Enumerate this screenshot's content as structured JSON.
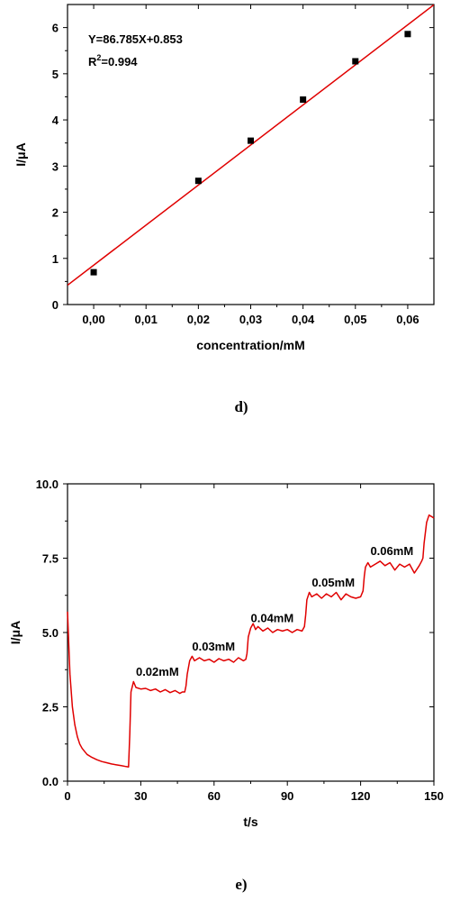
{
  "chart_data": [
    {
      "type": "scatter",
      "panel_label": "d)",
      "xlabel": "concentration/mM",
      "ylabel": "I/μA",
      "xlim": [
        -0.005,
        0.065
      ],
      "ylim": [
        0,
        6.5
      ],
      "x_ticks": [
        "0,00",
        "0,01",
        "0,02",
        "0,03",
        "0,04",
        "0,05",
        "0,06"
      ],
      "y_ticks": [
        "0",
        "1",
        "2",
        "3",
        "4",
        "5",
        "6"
      ],
      "equation": "Y=86.785X+0.853",
      "r_squared_prefix": "R",
      "r_squared_sup": "2",
      "r_squared_value": "=0.994",
      "fit": {
        "slope": 86.785,
        "intercept": 0.853
      },
      "series": [
        {
          "x": [
            0.0,
            0.02,
            0.03,
            0.04,
            0.05,
            0.06
          ],
          "y": [
            0.7,
            2.68,
            3.55,
            4.44,
            5.27,
            5.86
          ]
        }
      ],
      "colors": {
        "points": "#000000",
        "fit": "#e00000"
      }
    },
    {
      "type": "line",
      "panel_label": "e)",
      "xlabel": "t/s",
      "ylabel": "I/μA",
      "xlim": [
        0,
        150
      ],
      "ylim": [
        0,
        10
      ],
      "x_ticks": [
        "0",
        "30",
        "60",
        "90",
        "120",
        "150"
      ],
      "y_ticks": [
        "0.0",
        "2.5",
        "5.0",
        "7.5",
        "10.0"
      ],
      "annotations": [
        {
          "text": "0.02mM",
          "x": 28,
          "y": 3.55
        },
        {
          "text": "0.03mM",
          "x": 51,
          "y": 4.4
        },
        {
          "text": "0.04mM",
          "x": 75,
          "y": 5.35
        },
        {
          "text": "0.05mM",
          "x": 100,
          "y": 6.55
        },
        {
          "text": "0.06mM",
          "x": 124,
          "y": 7.6
        }
      ],
      "series": [
        {
          "x": [
            0,
            0.5,
            1,
            2,
            3,
            4,
            5,
            6,
            8,
            10,
            12,
            14,
            16,
            18,
            20,
            22,
            24,
            25,
            25.5,
            26,
            27,
            28,
            30,
            32,
            34,
            36,
            38,
            40,
            42,
            44,
            46,
            47,
            48,
            48.5,
            49,
            50,
            51,
            52,
            54,
            56,
            58,
            60,
            62,
            64,
            66,
            68,
            70,
            72,
            73,
            73.5,
            74,
            75,
            76,
            77,
            78,
            80,
            82,
            84,
            86,
            88,
            90,
            92,
            94,
            96,
            97,
            97.5,
            98,
            99,
            100,
            102,
            104,
            106,
            108,
            110,
            112,
            114,
            116,
            118,
            120,
            121,
            121.5,
            122,
            123,
            124,
            126,
            128,
            130,
            132,
            134,
            136,
            138,
            140,
            142,
            144,
            145,
            145.5,
            146,
            147,
            148,
            149,
            150
          ],
          "y": [
            5.7,
            4.6,
            3.6,
            2.5,
            1.9,
            1.5,
            1.25,
            1.1,
            0.9,
            0.8,
            0.72,
            0.66,
            0.62,
            0.58,
            0.55,
            0.52,
            0.49,
            0.48,
            1.6,
            3.0,
            3.35,
            3.15,
            3.1,
            3.12,
            3.05,
            3.1,
            3.0,
            3.08,
            2.98,
            3.05,
            2.95,
            3.0,
            3.0,
            3.2,
            3.6,
            4.05,
            4.2,
            4.05,
            4.15,
            4.05,
            4.1,
            4.0,
            4.12,
            4.05,
            4.1,
            4.0,
            4.15,
            4.05,
            4.1,
            4.3,
            4.85,
            5.15,
            5.3,
            5.1,
            5.2,
            5.05,
            5.15,
            5.0,
            5.1,
            5.05,
            5.1,
            5.0,
            5.1,
            5.05,
            5.2,
            5.6,
            6.1,
            6.35,
            6.2,
            6.3,
            6.15,
            6.3,
            6.2,
            6.35,
            6.1,
            6.3,
            6.2,
            6.15,
            6.2,
            6.4,
            6.9,
            7.2,
            7.35,
            7.2,
            7.3,
            7.4,
            7.25,
            7.35,
            7.1,
            7.3,
            7.2,
            7.3,
            7.0,
            7.25,
            7.4,
            7.5,
            8.0,
            8.7,
            8.95,
            8.9,
            8.85
          ]
        }
      ],
      "colors": {
        "line": "#e00000"
      }
    }
  ]
}
